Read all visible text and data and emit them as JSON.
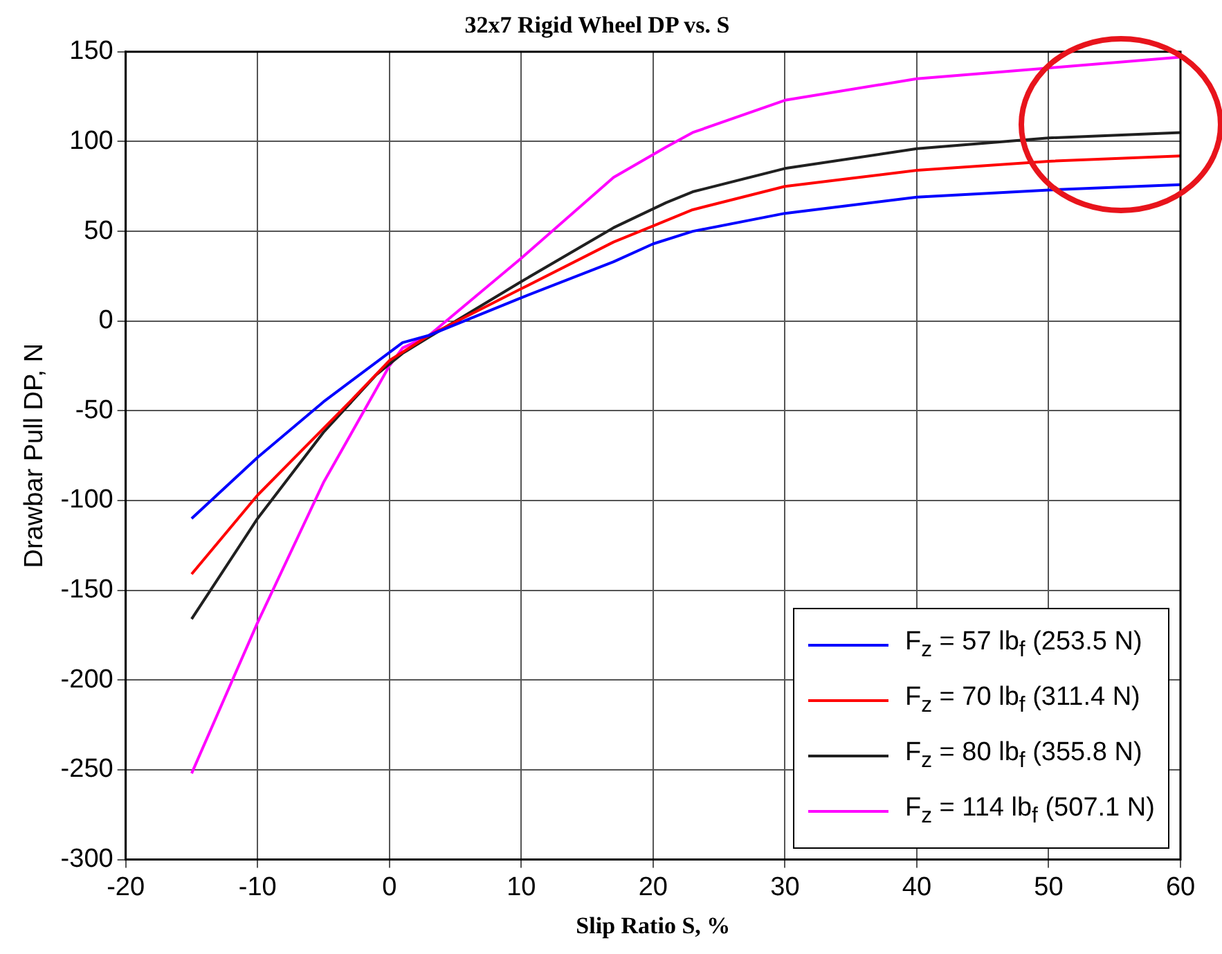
{
  "chart_data": {
    "type": "line",
    "title": "32x7 Rigid Wheel DP vs. S",
    "xlabel": "Slip Ratio S, %",
    "ylabel": "Drawbar Pull DP, N",
    "xlim": [
      -20,
      60
    ],
    "xticks": [
      -20,
      -10,
      0,
      10,
      20,
      30,
      40,
      50,
      60
    ],
    "ylim": [
      -300,
      150
    ],
    "yticks": [
      -300,
      -250,
      -200,
      -150,
      -100,
      -50,
      0,
      50,
      100,
      150
    ],
    "grid": true,
    "legend": "bottom right",
    "marker": "none",
    "line_style": "solid",
    "series": [
      {
        "name": "F$_{z}$ = 57 lb$_{f}$ (253.5 N)",
        "color": "#0000ff",
        "x": [
          -15,
          -10,
          -5,
          1,
          3,
          10,
          17,
          20,
          23,
          30,
          40,
          50,
          60
        ],
        "values": [
          -110,
          -76,
          -45,
          -12,
          -8,
          13,
          33,
          43,
          50,
          60,
          69,
          73,
          76
        ]
      },
      {
        "name": "F$_{z}$ = 70 lb$_{f}$ (311.4 N)",
        "color": "#ff0000",
        "x": [
          -15,
          -10,
          -3,
          0,
          3,
          10,
          17,
          20,
          23,
          30,
          40,
          50,
          60
        ],
        "values": [
          -141,
          -97,
          -45,
          -22,
          -8,
          18,
          44,
          53,
          62,
          75,
          84,
          89,
          92
        ]
      },
      {
        "name": "F$_{z}$ = 80 lb$_{f}$ (355.8 N)",
        "color": "#202020",
        "x": [
          -15,
          -10,
          -5,
          -1,
          1,
          3,
          10,
          17,
          21,
          23,
          30,
          40,
          50,
          60
        ],
        "values": [
          -166,
          -110,
          -62,
          -30,
          -18,
          -9,
          22,
          52,
          66,
          72,
          85,
          96,
          102,
          105
        ]
      },
      {
        "name": "F$_{z}$ = 114 lb$_{f}$ (507.1 N)",
        "color": "#ff00ff",
        "x": [
          -15,
          -10,
          -5,
          0,
          1,
          3,
          10,
          17,
          21,
          23,
          30,
          40,
          50,
          60
        ],
        "values": [
          -252,
          -168,
          -90,
          -25,
          -15,
          -8,
          35,
          80,
          97,
          105,
          123,
          135,
          141,
          147
        ]
      }
    ]
  }
}
